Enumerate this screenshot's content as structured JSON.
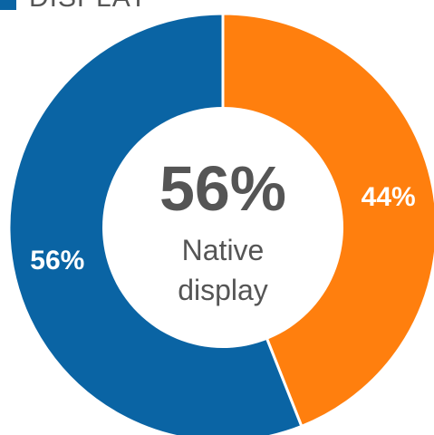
{
  "chart_data": {
    "type": "pie",
    "variant": "donut",
    "legend": {
      "label": "DISPLAY",
      "color": "#0A64A4",
      "position": "top-left"
    },
    "slices": [
      {
        "value": 44,
        "label": "44%",
        "color": "#FF7F0E"
      },
      {
        "value": 56,
        "label": "56%",
        "color": "#0A64A4"
      }
    ],
    "center": {
      "value": "56%",
      "line1": "Native",
      "line2": "display"
    }
  }
}
